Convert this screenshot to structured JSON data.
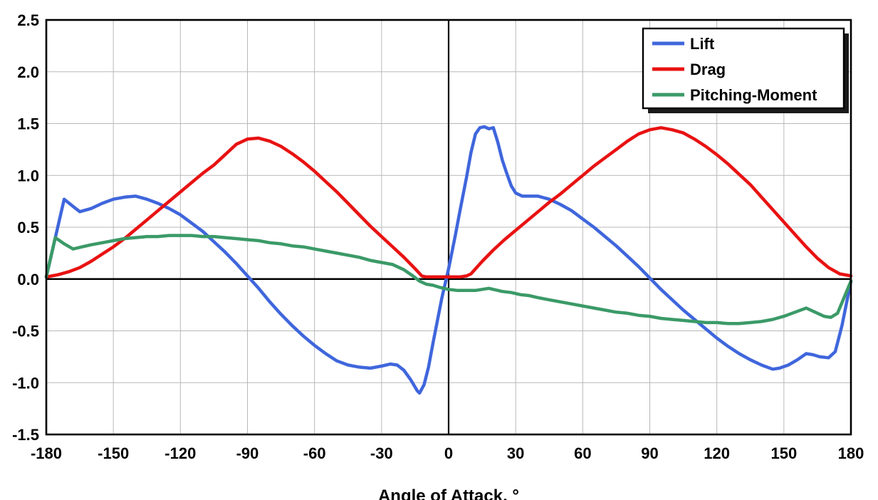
{
  "figure": {
    "background": "#ffffff",
    "border_color": "#000000"
  },
  "chart_data": {
    "type": "line",
    "title": "",
    "xlabel": "Angle of Attack, °",
    "ylabel": "",
    "xlim": [
      -180,
      180
    ],
    "ylim": [
      -1.5,
      2.5
    ],
    "xtick_step": 30,
    "ytick_step": 0.5,
    "grid": true,
    "grid_color": "#b8b8b8",
    "zero_lines": true,
    "legend": {
      "position": "top-right",
      "items": [
        "Lift",
        "Drag",
        "Pitching-Moment"
      ]
    },
    "series": [
      {
        "name": "Lift",
        "color": "#3f66dc",
        "points": [
          [
            -180,
            0.02
          ],
          [
            -172,
            0.77
          ],
          [
            -168,
            0.7
          ],
          [
            -165,
            0.65
          ],
          [
            -160,
            0.68
          ],
          [
            -155,
            0.73
          ],
          [
            -150,
            0.77
          ],
          [
            -145,
            0.79
          ],
          [
            -140,
            0.8
          ],
          [
            -135,
            0.77
          ],
          [
            -130,
            0.73
          ],
          [
            -125,
            0.68
          ],
          [
            -120,
            0.62
          ],
          [
            -115,
            0.54
          ],
          [
            -110,
            0.46
          ],
          [
            -105,
            0.36
          ],
          [
            -100,
            0.26
          ],
          [
            -95,
            0.15
          ],
          [
            -90,
            0.03
          ],
          [
            -85,
            -0.09
          ],
          [
            -80,
            -0.22
          ],
          [
            -75,
            -0.34
          ],
          [
            -70,
            -0.45
          ],
          [
            -65,
            -0.55
          ],
          [
            -60,
            -0.64
          ],
          [
            -55,
            -0.72
          ],
          [
            -50,
            -0.79
          ],
          [
            -45,
            -0.83
          ],
          [
            -40,
            -0.85
          ],
          [
            -35,
            -0.86
          ],
          [
            -30,
            -0.84
          ],
          [
            -26,
            -0.82
          ],
          [
            -23,
            -0.83
          ],
          [
            -20,
            -0.88
          ],
          [
            -17,
            -0.97
          ],
          [
            -14,
            -1.08
          ],
          [
            -13,
            -1.1
          ],
          [
            -11,
            -1.02
          ],
          [
            -9,
            -0.85
          ],
          [
            -7,
            -0.62
          ],
          [
            -5,
            -0.4
          ],
          [
            -3,
            -0.18
          ],
          [
            0,
            0.1
          ],
          [
            3,
            0.42
          ],
          [
            5,
            0.65
          ],
          [
            8,
            0.98
          ],
          [
            10,
            1.22
          ],
          [
            12,
            1.4
          ],
          [
            14,
            1.46
          ],
          [
            16,
            1.47
          ],
          [
            18,
            1.45
          ],
          [
            20,
            1.46
          ],
          [
            22,
            1.32
          ],
          [
            24,
            1.15
          ],
          [
            26,
            1.02
          ],
          [
            28,
            0.9
          ],
          [
            30,
            0.83
          ],
          [
            33,
            0.8
          ],
          [
            36,
            0.8
          ],
          [
            40,
            0.8
          ],
          [
            45,
            0.77
          ],
          [
            50,
            0.72
          ],
          [
            55,
            0.66
          ],
          [
            60,
            0.58
          ],
          [
            65,
            0.5
          ],
          [
            70,
            0.41
          ],
          [
            75,
            0.32
          ],
          [
            80,
            0.22
          ],
          [
            85,
            0.12
          ],
          [
            90,
            0.01
          ],
          [
            95,
            -0.1
          ],
          [
            100,
            -0.2
          ],
          [
            105,
            -0.3
          ],
          [
            110,
            -0.39
          ],
          [
            115,
            -0.48
          ],
          [
            120,
            -0.57
          ],
          [
            125,
            -0.65
          ],
          [
            130,
            -0.72
          ],
          [
            135,
            -0.78
          ],
          [
            140,
            -0.83
          ],
          [
            145,
            -0.87
          ],
          [
            148,
            -0.86
          ],
          [
            152,
            -0.83
          ],
          [
            156,
            -0.78
          ],
          [
            160,
            -0.72
          ],
          [
            163,
            -0.73
          ],
          [
            166,
            -0.75
          ],
          [
            170,
            -0.76
          ],
          [
            173,
            -0.7
          ],
          [
            176,
            -0.45
          ],
          [
            180,
            -0.02
          ]
        ]
      },
      {
        "name": "Drag",
        "color": "#e81212",
        "points": [
          [
            -180,
            0.02
          ],
          [
            -175,
            0.04
          ],
          [
            -170,
            0.07
          ],
          [
            -165,
            0.11
          ],
          [
            -160,
            0.17
          ],
          [
            -155,
            0.24
          ],
          [
            -150,
            0.31
          ],
          [
            -145,
            0.39
          ],
          [
            -140,
            0.48
          ],
          [
            -135,
            0.57
          ],
          [
            -130,
            0.66
          ],
          [
            -125,
            0.75
          ],
          [
            -120,
            0.84
          ],
          [
            -115,
            0.93
          ],
          [
            -110,
            1.02
          ],
          [
            -105,
            1.1
          ],
          [
            -100,
            1.2
          ],
          [
            -95,
            1.3
          ],
          [
            -90,
            1.35
          ],
          [
            -85,
            1.36
          ],
          [
            -80,
            1.33
          ],
          [
            -75,
            1.28
          ],
          [
            -70,
            1.21
          ],
          [
            -65,
            1.13
          ],
          [
            -60,
            1.04
          ],
          [
            -55,
            0.94
          ],
          [
            -50,
            0.84
          ],
          [
            -45,
            0.73
          ],
          [
            -40,
            0.62
          ],
          [
            -35,
            0.51
          ],
          [
            -30,
            0.41
          ],
          [
            -25,
            0.31
          ],
          [
            -20,
            0.21
          ],
          [
            -15,
            0.1
          ],
          [
            -12,
            0.03
          ],
          [
            -10,
            0.02
          ],
          [
            -5,
            0.02
          ],
          [
            0,
            0.02
          ],
          [
            5,
            0.02
          ],
          [
            8,
            0.03
          ],
          [
            10,
            0.05
          ],
          [
            15,
            0.17
          ],
          [
            20,
            0.28
          ],
          [
            25,
            0.38
          ],
          [
            30,
            0.47
          ],
          [
            35,
            0.56
          ],
          [
            40,
            0.65
          ],
          [
            45,
            0.74
          ],
          [
            50,
            0.82
          ],
          [
            55,
            0.91
          ],
          [
            60,
            1.0
          ],
          [
            65,
            1.09
          ],
          [
            70,
            1.17
          ],
          [
            75,
            1.25
          ],
          [
            80,
            1.33
          ],
          [
            85,
            1.4
          ],
          [
            90,
            1.44
          ],
          [
            95,
            1.46
          ],
          [
            100,
            1.44
          ],
          [
            105,
            1.41
          ],
          [
            110,
            1.35
          ],
          [
            115,
            1.28
          ],
          [
            120,
            1.2
          ],
          [
            125,
            1.11
          ],
          [
            130,
            1.01
          ],
          [
            135,
            0.91
          ],
          [
            140,
            0.79
          ],
          [
            145,
            0.67
          ],
          [
            150,
            0.55
          ],
          [
            155,
            0.43
          ],
          [
            160,
            0.31
          ],
          [
            165,
            0.2
          ],
          [
            170,
            0.11
          ],
          [
            175,
            0.05
          ],
          [
            180,
            0.03
          ]
        ]
      },
      {
        "name": "Pitching-Moment",
        "color": "#3b9a68",
        "points": [
          [
            -180,
            0.02
          ],
          [
            -176,
            0.4
          ],
          [
            -172,
            0.34
          ],
          [
            -168,
            0.29
          ],
          [
            -164,
            0.31
          ],
          [
            -160,
            0.33
          ],
          [
            -155,
            0.35
          ],
          [
            -150,
            0.37
          ],
          [
            -145,
            0.39
          ],
          [
            -140,
            0.4
          ],
          [
            -135,
            0.41
          ],
          [
            -130,
            0.41
          ],
          [
            -125,
            0.42
          ],
          [
            -120,
            0.42
          ],
          [
            -115,
            0.42
          ],
          [
            -110,
            0.41
          ],
          [
            -105,
            0.41
          ],
          [
            -100,
            0.4
          ],
          [
            -95,
            0.39
          ],
          [
            -90,
            0.38
          ],
          [
            -85,
            0.37
          ],
          [
            -80,
            0.35
          ],
          [
            -75,
            0.34
          ],
          [
            -70,
            0.32
          ],
          [
            -65,
            0.31
          ],
          [
            -60,
            0.29
          ],
          [
            -55,
            0.27
          ],
          [
            -50,
            0.25
          ],
          [
            -45,
            0.23
          ],
          [
            -40,
            0.21
          ],
          [
            -35,
            0.18
          ],
          [
            -30,
            0.16
          ],
          [
            -25,
            0.14
          ],
          [
            -20,
            0.09
          ],
          [
            -16,
            0.03
          ],
          [
            -13,
            -0.02
          ],
          [
            -10,
            -0.05
          ],
          [
            -7,
            -0.06
          ],
          [
            -4,
            -0.08
          ],
          [
            0,
            -0.1
          ],
          [
            4,
            -0.11
          ],
          [
            8,
            -0.11
          ],
          [
            12,
            -0.11
          ],
          [
            15,
            -0.1
          ],
          [
            18,
            -0.09
          ],
          [
            20,
            -0.1
          ],
          [
            24,
            -0.12
          ],
          [
            28,
            -0.13
          ],
          [
            32,
            -0.15
          ],
          [
            36,
            -0.16
          ],
          [
            40,
            -0.18
          ],
          [
            45,
            -0.2
          ],
          [
            50,
            -0.22
          ],
          [
            55,
            -0.24
          ],
          [
            60,
            -0.26
          ],
          [
            65,
            -0.28
          ],
          [
            70,
            -0.3
          ],
          [
            75,
            -0.32
          ],
          [
            80,
            -0.33
          ],
          [
            85,
            -0.35
          ],
          [
            90,
            -0.36
          ],
          [
            95,
            -0.38
          ],
          [
            100,
            -0.39
          ],
          [
            105,
            -0.4
          ],
          [
            110,
            -0.41
          ],
          [
            115,
            -0.42
          ],
          [
            120,
            -0.42
          ],
          [
            125,
            -0.43
          ],
          [
            130,
            -0.43
          ],
          [
            135,
            -0.42
          ],
          [
            140,
            -0.41
          ],
          [
            145,
            -0.39
          ],
          [
            150,
            -0.36
          ],
          [
            155,
            -0.32
          ],
          [
            160,
            -0.28
          ],
          [
            164,
            -0.32
          ],
          [
            168,
            -0.36
          ],
          [
            171,
            -0.37
          ],
          [
            174,
            -0.33
          ],
          [
            180,
            -0.02
          ]
        ]
      }
    ]
  }
}
